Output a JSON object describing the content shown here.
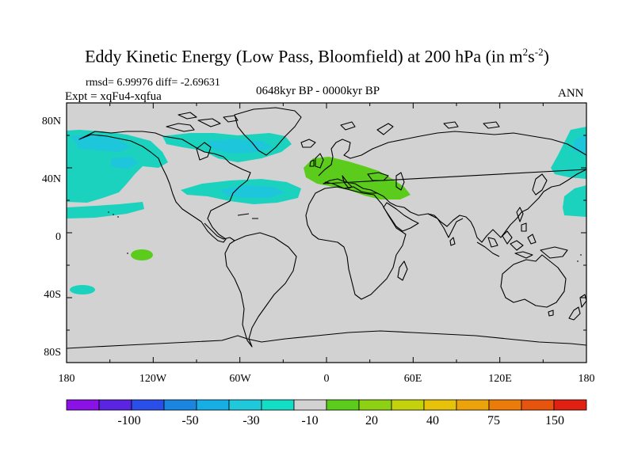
{
  "title": {
    "main": "Eddy Kinetic Energy (Low Pass, Bloomfield) at 200 hPa (in m",
    "sup1": "2",
    "mid": "s",
    "sup2": "-2",
    "close": ")"
  },
  "stats": {
    "rmsd": "rmsd= 6.99976",
    "diff": "diff= -2.69631"
  },
  "experiment": "Expt = xqFu4-xqfua",
  "period": "0648kyr BP - 0000kyr BP",
  "season": "ANN",
  "lat_labels": [
    "80N",
    "40N",
    "0",
    "40S",
    "80S"
  ],
  "lon_labels": [
    "180",
    "120W",
    "60W",
    "0",
    "60E",
    "120E",
    "180"
  ],
  "colorbar": {
    "labels": [
      "-100",
      "-50",
      "-30",
      "-10",
      "20",
      "40",
      "75",
      "150"
    ],
    "colors": [
      "#8a12e6",
      "#5a24e0",
      "#2a4ee8",
      "#1a86e0",
      "#16aee4",
      "#20c8dc",
      "#14ddc6",
      "#d2d2d2",
      "#5ccc1c",
      "#8ed014",
      "#c2d20c",
      "#e6c20a",
      "#eca20a",
      "#ec7c0a",
      "#e6540e",
      "#e02010"
    ]
  },
  "colors": {
    "land_ocean": "#d2d2d2",
    "teal": "#1ad2be",
    "light_blue": "#1ec6dc",
    "green": "#5ccc1c",
    "coast": "#000000"
  }
}
